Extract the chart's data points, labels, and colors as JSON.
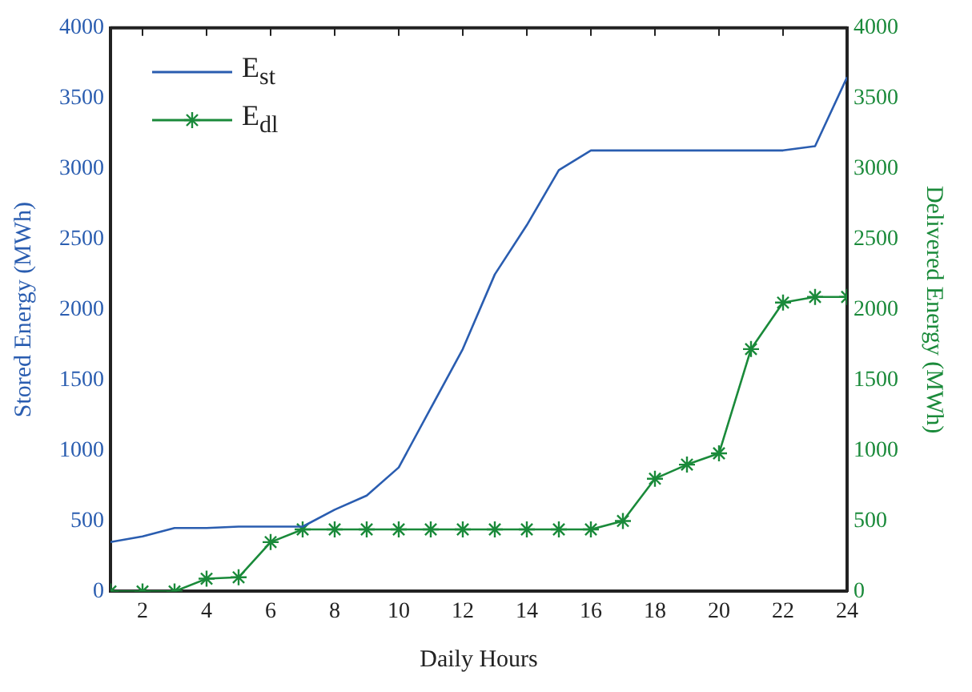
{
  "chart_data": {
    "type": "line",
    "xlabel": "Daily Hours",
    "ylabel": "Stored Energy (MWh)",
    "y2label": "Delivered Energy (MWh)",
    "x": [
      1,
      2,
      3,
      4,
      5,
      6,
      7,
      8,
      9,
      10,
      11,
      12,
      13,
      14,
      15,
      16,
      17,
      18,
      19,
      20,
      21,
      22,
      23,
      24
    ],
    "series": [
      {
        "name": "E$_{st}$",
        "color": "#2a5db0",
        "axis": "y",
        "marker": "none",
        "values": [
          350,
          390,
          450,
          450,
          460,
          460,
          460,
          580,
          680,
          880,
          1300,
          1720,
          2250,
          2600,
          2990,
          3130,
          3130,
          3130,
          3130,
          3130,
          3130,
          3130,
          3160,
          3650
        ]
      },
      {
        "name": "E$_{dl}$",
        "color": "#1a8a3a",
        "axis": "y2",
        "marker": "cross",
        "values": [
          0,
          0,
          0,
          90,
          100,
          350,
          440,
          440,
          440,
          440,
          440,
          440,
          440,
          440,
          440,
          440,
          500,
          800,
          900,
          980,
          1720,
          2050,
          2090,
          2090
        ]
      }
    ],
    "xlim": [
      1,
      24
    ],
    "xticks": [
      2,
      4,
      6,
      8,
      10,
      12,
      14,
      16,
      18,
      20,
      22,
      24
    ],
    "ylim": [
      0,
      4000
    ],
    "yticks": [
      0,
      500,
      1000,
      1500,
      2000,
      2500,
      3000,
      3500,
      4000
    ],
    "y2lim": [
      0,
      4000
    ],
    "y2ticks": [
      0,
      500,
      1000,
      1500,
      2000,
      2500,
      3000,
      3500,
      4000
    ],
    "legend": "top left",
    "grid": false,
    "line_style": "solid"
  }
}
